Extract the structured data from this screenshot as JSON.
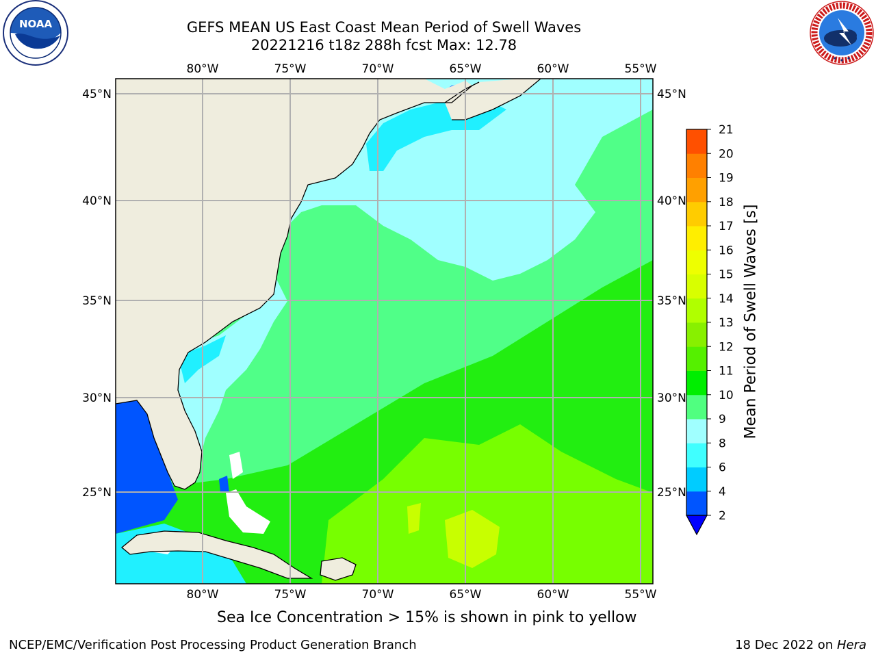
{
  "header": {
    "title_line1": "GEFS MEAN US East Coast Mean Period of Swell Waves",
    "title_line2": "20221216 t18z 288h fcst   Max: 12.78"
  },
  "logos": {
    "left": {
      "icon": "noaa-logo",
      "text": "NOAA",
      "ring_text": "NATIONAL OCEANIC AND ATMOSPHERIC ADMINISTRATION · U.S. DEPARTMENT OF COMMERCE"
    },
    "right": {
      "icon": "national-weather-service-logo",
      "ring_text": "NATIONAL WEATHER SERVICE"
    }
  },
  "map": {
    "lon_labels": [
      "80°W",
      "75°W",
      "70°W",
      "65°W",
      "60°W",
      "55°W"
    ],
    "lat_labels": [
      "45°N",
      "40°N",
      "35°N",
      "30°N",
      "25°N"
    ],
    "colors": {
      "land": "#efedde",
      "grid": "#b0b0b0",
      "coast": "#000000",
      "blue": "#0055ff",
      "cyan": "#20f0ff",
      "light_cyan": "#a0ffff",
      "light_green": "#50ff88",
      "green": "#22ee11",
      "lime": "#77ff00",
      "yellow_green": "#c8ff00"
    }
  },
  "colorbar": {
    "label": "Mean Period of Swell Waves [s]",
    "ticks": [
      "2",
      "4",
      "6",
      "8",
      "9",
      "10",
      "11",
      "12",
      "13",
      "14",
      "15",
      "16",
      "17",
      "18",
      "19",
      "20",
      "21"
    ],
    "colors": [
      "#0055ff",
      "#00ccff",
      "#40ffff",
      "#a0ffff",
      "#50ff80",
      "#00ee00",
      "#55f000",
      "#88f000",
      "#b0ff00",
      "#d8ff00",
      "#eeff00",
      "#ffee00",
      "#ffcc00",
      "#ffa000",
      "#ff8000",
      "#ff5000",
      "#ff2000",
      "#ff0000"
    ]
  },
  "subtitle": "Sea Ice Concentration > 15% is shown in pink to yellow",
  "footer": {
    "left": "NCEP/EMC/Verification Post Processing Product Generation Branch",
    "date": "18 Dec 2022 on",
    "host": "Hera"
  }
}
